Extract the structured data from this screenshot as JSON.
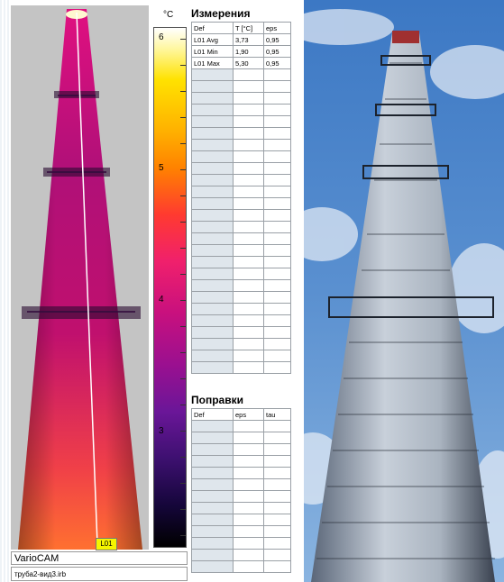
{
  "scale": {
    "unit": "°C",
    "ticks": [
      "6",
      "5",
      "4",
      "3"
    ]
  },
  "measurements": {
    "title": "Измерения",
    "columns": [
      "Def",
      "T [°C]",
      "eps"
    ],
    "rows": [
      [
        "L01 Avg",
        "3,73",
        "0,95"
      ],
      [
        "L01 Min",
        "1,90",
        "0,95"
      ],
      [
        "L01 Max",
        "5,30",
        "0,95"
      ]
    ]
  },
  "corrections": {
    "title": "Поправки",
    "columns": [
      "Def",
      "eps",
      "tau"
    ]
  },
  "cursor": {
    "label": "L01"
  },
  "footer": {
    "brand": "VarioCAM",
    "file": "труба2-вид3.irb"
  },
  "colors": {
    "palette_top": "#ffffff",
    "palette_mid": "#f0206c",
    "palette_bottom": "#000000",
    "sky": "#4a82c8"
  }
}
